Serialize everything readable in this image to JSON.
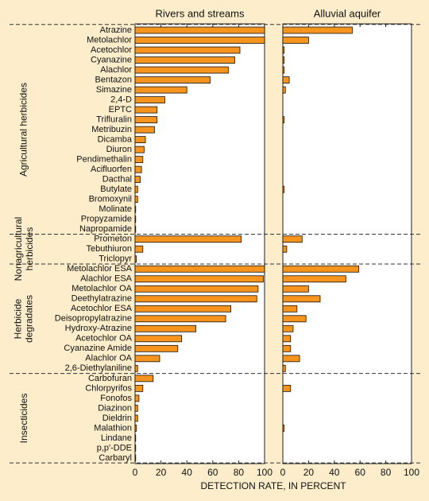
{
  "chart_data": {
    "type": "bar",
    "orientation": "horizontal",
    "xlabel": "DETECTION RATE, IN PERCENT",
    "xlim": [
      0,
      100
    ],
    "xticks": [
      0,
      20,
      40,
      60,
      80,
      100
    ],
    "groups": [
      {
        "name": "Agricultural herbicides",
        "categories": [
          "Atrazine",
          "Metolachlor",
          "Acetochlor",
          "Cyanazine",
          "Alachlor",
          "Bentazon",
          "Simazine",
          "2,4-D",
          "EPTC",
          "Trifluralin",
          "Metribuzin",
          "Dicamba",
          "Diuron",
          "Pendimethalin",
          "Acifluorfen",
          "Dacthal",
          "Butylate",
          "Bromoxynil",
          "Molinate",
          "Propyzamide",
          "Napropamide"
        ]
      },
      {
        "name": "Nonagricultural herbicides",
        "categories": [
          "Prometon",
          "Tebuthiuron",
          "Triclopyr"
        ]
      },
      {
        "name": "Herbicide degradates",
        "categories": [
          "Metolachlor ESA",
          "Alachlor ESA",
          "Metolachlor OA",
          "Deethylatrazine",
          "Acetochlor ESA",
          "Deisopropylatrazine",
          "Hydroxy-Atrazine",
          "Acetochlor OA",
          "Cyanazine Amide",
          "Alachlor OA",
          "2,6-Diethylaniline"
        ]
      },
      {
        "name": "Insecticides",
        "categories": [
          "Carbofuran",
          "Chlorpyrifos",
          "Fonofos",
          "Diazinon",
          "Dieldrin",
          "Malathion",
          "Lindane",
          "p,p'-DDE",
          "Carbaryl"
        ]
      }
    ],
    "panels": [
      {
        "title": "Rivers and streams",
        "color": "#f7941d",
        "values": [
          [
            100,
            100,
            81,
            77,
            72,
            58,
            40,
            23,
            17,
            17,
            15,
            8,
            7,
            6,
            5,
            4,
            2,
            2,
            0.5,
            0.5,
            0.5
          ],
          [
            82,
            6,
            1
          ],
          [
            100,
            99,
            95,
            94,
            74,
            70,
            47,
            36,
            33,
            19,
            2
          ],
          [
            14,
            6,
            3,
            2,
            2,
            1,
            0.5,
            0.5,
            0.5
          ]
        ]
      },
      {
        "title": "Alluvial aquifer",
        "color": "#f7941d",
        "values": [
          [
            54,
            20,
            1,
            1,
            1,
            5,
            2,
            0,
            0,
            1,
            0,
            0,
            0,
            0,
            0,
            0,
            1,
            0,
            0,
            0,
            0
          ],
          [
            15,
            3,
            0
          ],
          [
            59,
            49,
            20,
            29,
            11,
            18,
            8,
            6,
            6,
            13,
            2
          ],
          [
            0,
            6,
            0,
            0,
            0,
            1,
            0,
            0,
            0
          ]
        ]
      }
    ]
  }
}
